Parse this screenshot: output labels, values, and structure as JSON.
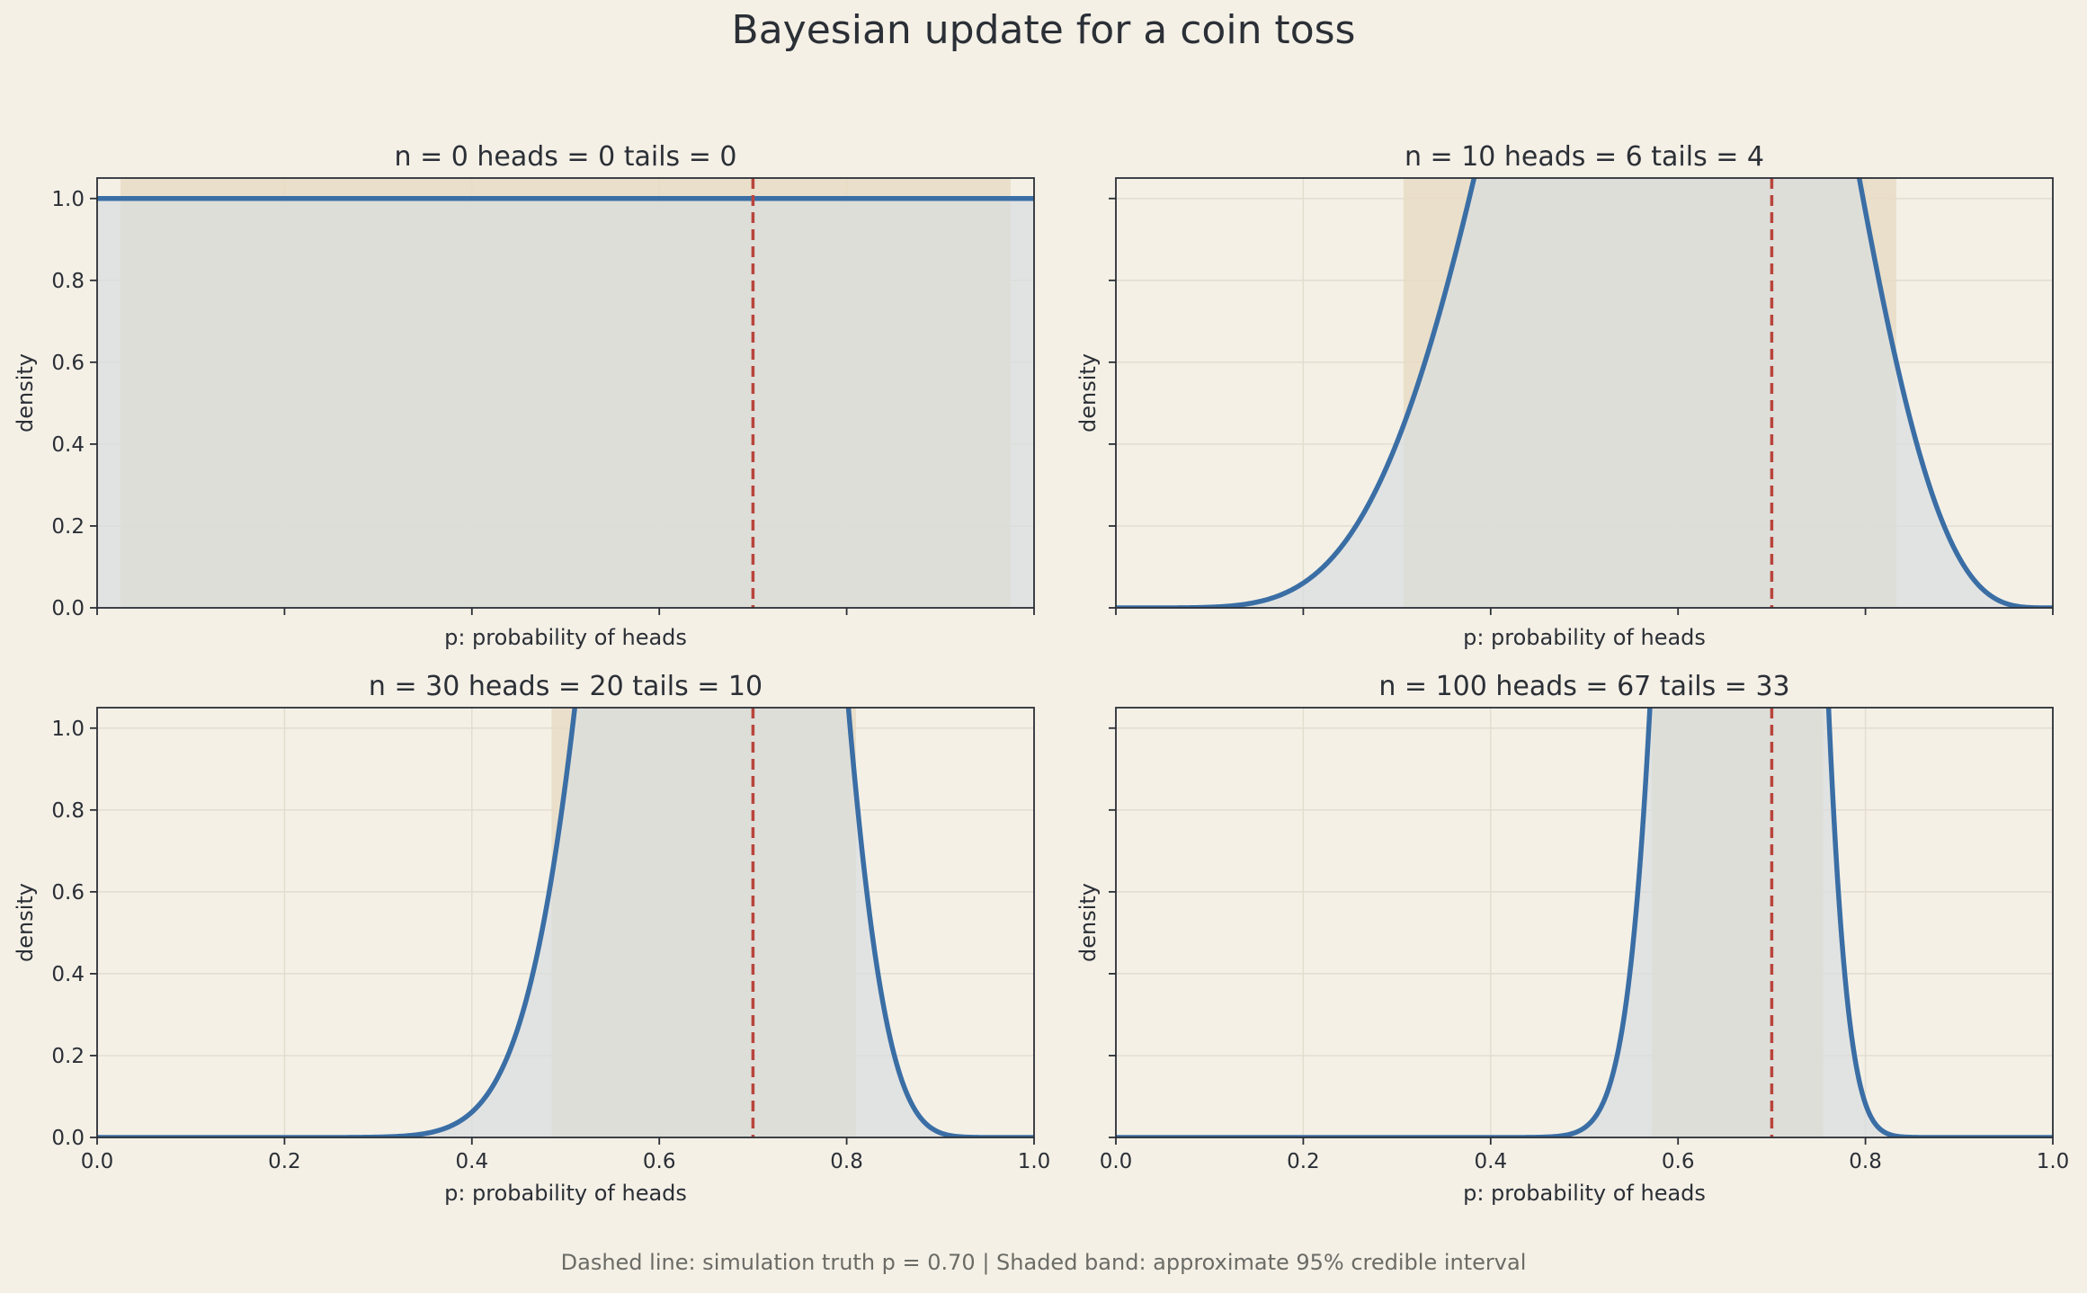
{
  "figure": {
    "title": "Bayesian update for a coin toss",
    "footnote": "Dashed line: simulation truth p = 0.70   |   Shaded band: approximate 95% credible interval"
  },
  "colors": {
    "background": "#f4f0e6",
    "curve": "#3a6ea5",
    "curve_fill": "#d9dde0",
    "ci_band": "#e8dcc4",
    "truth_line": "#b8453c",
    "grid": "#e3ddd0",
    "axis": "#2b2f36"
  },
  "chart_data": [
    {
      "type": "area",
      "title": "n = 0   heads = 0   tails = 0",
      "n": 0,
      "heads": 0,
      "tails": 0,
      "xlabel": "p: probability of heads",
      "ylabel": "density",
      "xlim": [
        0.0,
        1.0
      ],
      "ylim": [
        0.0,
        1.05
      ],
      "xticks": [
        "0.0",
        "0.2",
        "0.4",
        "0.6",
        "0.8",
        "1.0"
      ],
      "yticks": [
        "0.0",
        "0.2",
        "0.4",
        "0.6",
        "0.8",
        "1.0"
      ],
      "show_xtick_labels": false,
      "show_ytick_labels": true,
      "show_ylabel": true,
      "truth_p": 0.7,
      "credible_interval": [
        0.025,
        0.975
      ],
      "grid": true
    },
    {
      "type": "area",
      "title": "n = 10   heads = 6   tails = 4",
      "n": 10,
      "heads": 6,
      "tails": 4,
      "xlabel": "p: probability of heads",
      "ylabel": "density",
      "xlim": [
        0.0,
        1.0
      ],
      "ylim": [
        0.0,
        1.05
      ],
      "xticks": [
        "0.0",
        "0.2",
        "0.4",
        "0.6",
        "0.8",
        "1.0"
      ],
      "yticks": [
        "0.0",
        "0.2",
        "0.4",
        "0.6",
        "0.8",
        "1.0"
      ],
      "show_xtick_labels": false,
      "show_ytick_labels": false,
      "show_ylabel": true,
      "truth_p": 0.7,
      "credible_interval": [
        0.307,
        0.833
      ],
      "grid": true
    },
    {
      "type": "area",
      "title": "n = 30   heads = 20   tails = 10",
      "n": 30,
      "heads": 20,
      "tails": 10,
      "xlabel": "p: probability of heads",
      "ylabel": "density",
      "xlim": [
        0.0,
        1.0
      ],
      "ylim": [
        0.0,
        1.05
      ],
      "xticks": [
        "0.0",
        "0.2",
        "0.4",
        "0.6",
        "0.8",
        "1.0"
      ],
      "yticks": [
        "0.0",
        "0.2",
        "0.4",
        "0.6",
        "0.8",
        "1.0"
      ],
      "show_xtick_labels": true,
      "show_ytick_labels": true,
      "show_ylabel": true,
      "truth_p": 0.7,
      "credible_interval": [
        0.485,
        0.81
      ],
      "grid": true
    },
    {
      "type": "area",
      "title": "n = 100   heads = 67   tails = 33",
      "n": 100,
      "heads": 67,
      "tails": 33,
      "xlabel": "p: probability of heads",
      "ylabel": "density",
      "xlim": [
        0.0,
        1.0
      ],
      "ylim": [
        0.0,
        1.05
      ],
      "xticks": [
        "0.0",
        "0.2",
        "0.4",
        "0.6",
        "0.8",
        "1.0"
      ],
      "yticks": [
        "0.0",
        "0.2",
        "0.4",
        "0.6",
        "0.8",
        "1.0"
      ],
      "show_xtick_labels": true,
      "show_ytick_labels": false,
      "show_ylabel": true,
      "truth_p": 0.7,
      "credible_interval": [
        0.572,
        0.755
      ],
      "grid": true
    }
  ]
}
